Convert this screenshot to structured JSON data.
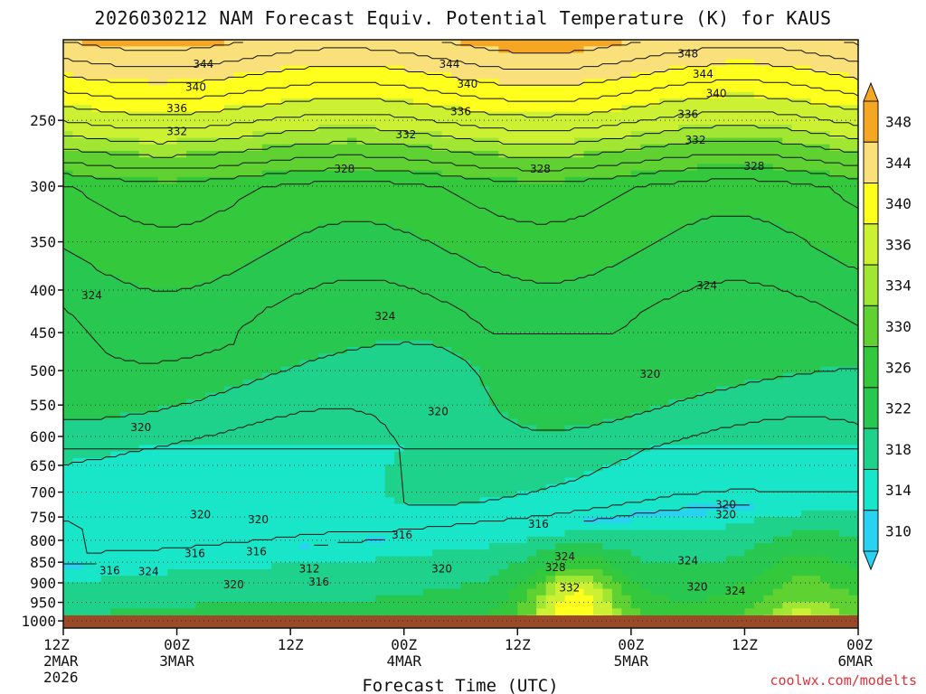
{
  "title": "2026030212 NAM Forecast Equiv. Potential Temperature (K) for KAUS",
  "credit": "coolwx.com/modelts",
  "chart_data": {
    "type": "heatmap",
    "title": "2026030212 NAM Forecast Equiv. Potential Temperature (K) for KAUS",
    "xlabel": "Forecast Time (UTC)",
    "ylabel": "",
    "x_range_hours": [
      0,
      84
    ],
    "x_ticks": [
      {
        "hour": 0,
        "l1": "12Z",
        "l2": "2MAR",
        "l3": "2026"
      },
      {
        "hour": 12,
        "l1": "00Z",
        "l2": "3MAR",
        "l3": ""
      },
      {
        "hour": 24,
        "l1": "12Z",
        "l2": "",
        "l3": ""
      },
      {
        "hour": 36,
        "l1": "00Z",
        "l2": "4MAR",
        "l3": ""
      },
      {
        "hour": 48,
        "l1": "12Z",
        "l2": "",
        "l3": ""
      },
      {
        "hour": 60,
        "l1": "00Z",
        "l2": "5MAR",
        "l3": ""
      },
      {
        "hour": 72,
        "l1": "12Z",
        "l2": "",
        "l3": ""
      },
      {
        "hour": 84,
        "l1": "00Z",
        "l2": "6MAR",
        "l3": ""
      }
    ],
    "y_ticks": [
      250,
      300,
      350,
      400,
      450,
      500,
      550,
      600,
      650,
      700,
      750,
      800,
      850,
      900,
      950,
      1000
    ],
    "y_range_mb": [
      200,
      1020
    ],
    "grid": "dotted horizontal",
    "colorbar": {
      "labels": [
        "348",
        "344",
        "340",
        "336",
        "334",
        "330",
        "326",
        "322",
        "318",
        "314",
        "310"
      ],
      "colors": [
        "#f5a623",
        "#f9e07a",
        "#ffff1e",
        "#ccf032",
        "#a0e632",
        "#5fd232",
        "#34c83c",
        "#28c850",
        "#1ed28c",
        "#19e6c8",
        "#28d2f0"
      ]
    },
    "contour_labels": [
      {
        "text": "344",
        "h": 14.8,
        "p": 214
      },
      {
        "text": "344",
        "h": 40.8,
        "p": 214
      },
      {
        "text": "348",
        "h": 66.0,
        "p": 208
      },
      {
        "text": "344",
        "h": 67.6,
        "p": 220
      },
      {
        "text": "340",
        "h": 14.0,
        "p": 228
      },
      {
        "text": "340",
        "h": 42.7,
        "p": 226
      },
      {
        "text": "340",
        "h": 69.0,
        "p": 232
      },
      {
        "text": "336",
        "h": 12.0,
        "p": 242
      },
      {
        "text": "336",
        "h": 42.0,
        "p": 244
      },
      {
        "text": "336",
        "h": 66.0,
        "p": 246
      },
      {
        "text": "332",
        "h": 12.0,
        "p": 258
      },
      {
        "text": "332",
        "h": 36.2,
        "p": 260
      },
      {
        "text": "332",
        "h": 66.8,
        "p": 264
      },
      {
        "text": "328",
        "h": 29.7,
        "p": 286
      },
      {
        "text": "328",
        "h": 50.4,
        "p": 286
      },
      {
        "text": "328",
        "h": 73.0,
        "p": 284
      },
      {
        "text": "324",
        "h": 3.0,
        "p": 406
      },
      {
        "text": "324",
        "h": 68.0,
        "p": 395
      },
      {
        "text": "324",
        "h": 34.0,
        "p": 430
      },
      {
        "text": "320",
        "h": 62.0,
        "p": 505
      },
      {
        "text": "320",
        "h": 39.6,
        "p": 560
      },
      {
        "text": "320",
        "h": 8.2,
        "p": 585
      },
      {
        "text": "320",
        "h": 14.5,
        "p": 745
      },
      {
        "text": "320",
        "h": 20.6,
        "p": 755
      },
      {
        "text": "320",
        "h": 70.0,
        "p": 725
      },
      {
        "text": "320",
        "h": 70.0,
        "p": 745
      },
      {
        "text": "316",
        "h": 35.8,
        "p": 788
      },
      {
        "text": "316",
        "h": 50.2,
        "p": 765
      },
      {
        "text": "316",
        "h": 13.9,
        "p": 830
      },
      {
        "text": "316",
        "h": 20.4,
        "p": 826
      },
      {
        "text": "316",
        "h": 4.9,
        "p": 870
      },
      {
        "text": "324",
        "h": 9.0,
        "p": 872
      },
      {
        "text": "312",
        "h": 26.0,
        "p": 866
      },
      {
        "text": "316",
        "h": 27.0,
        "p": 898
      },
      {
        "text": "320",
        "h": 18.0,
        "p": 905
      },
      {
        "text": "320",
        "h": 40.0,
        "p": 866
      },
      {
        "text": "324",
        "h": 53.0,
        "p": 837
      },
      {
        "text": "328",
        "h": 52.0,
        "p": 862
      },
      {
        "text": "332",
        "h": 53.5,
        "p": 913
      },
      {
        "text": "324",
        "h": 66.0,
        "p": 847
      },
      {
        "text": "320",
        "h": 67.0,
        "p": 910
      },
      {
        "text": "324",
        "h": 71.0,
        "p": 920
      }
    ],
    "field_description_note": ""
  }
}
